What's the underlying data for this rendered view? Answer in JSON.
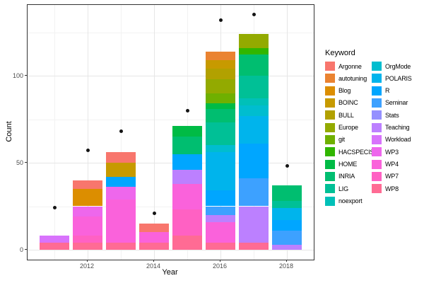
{
  "axes": {
    "x_title": "Year",
    "y_title": "Count"
  },
  "legend": {
    "title": "Keyword",
    "columns": [
      12,
      11
    ]
  },
  "chart_data": {
    "type": "bar",
    "subtype": "stacked_bars_with_point_overlay",
    "title": "",
    "xlabel": "Year",
    "ylabel": "Count",
    "grid": true,
    "legend_position": "right",
    "x": [
      2011,
      2012,
      2013,
      2014,
      2015,
      2016,
      2017,
      2018
    ],
    "ylim": [
      0,
      141
    ],
    "y_major": [
      0,
      50,
      100
    ],
    "y_minor": [
      25,
      75,
      125
    ],
    "y_tick_labels": [
      "0",
      "50",
      "100"
    ],
    "x_major": [
      2012,
      2014,
      2016,
      2018
    ],
    "x_minor": [
      2011,
      2013,
      2015,
      2017
    ],
    "x_tick_labels": [
      "2012",
      "2014",
      "2016",
      "2018"
    ],
    "keywords": [
      {
        "name": "Argonne",
        "color": "#F8766D"
      },
      {
        "name": "autotuning",
        "color": "#EA8331"
      },
      {
        "name": "Blog",
        "color": "#DC8E00"
      },
      {
        "name": "BOINC",
        "color": "#C79A00"
      },
      {
        "name": "BULL",
        "color": "#B2A100"
      },
      {
        "name": "Europe",
        "color": "#93AA00"
      },
      {
        "name": "git",
        "color": "#6FB000"
      },
      {
        "name": "HACSPECIS",
        "color": "#31B600"
      },
      {
        "name": "HOME",
        "color": "#00BB45"
      },
      {
        "name": "INRIA",
        "color": "#00BE70"
      },
      {
        "name": "LIG",
        "color": "#00C096"
      },
      {
        "name": "noexport",
        "color": "#00C0B8"
      },
      {
        "name": "OrgMode",
        "color": "#00BDCF"
      },
      {
        "name": "POLARIS",
        "color": "#00B4EC"
      },
      {
        "name": "R",
        "color": "#00A6FF"
      },
      {
        "name": "Seminar",
        "color": "#3DA1FF"
      },
      {
        "name": "Stats",
        "color": "#9590FF"
      },
      {
        "name": "Teaching",
        "color": "#BC80FF"
      },
      {
        "name": "Workload",
        "color": "#D873FC"
      },
      {
        "name": "WP3",
        "color": "#EE67EC"
      },
      {
        "name": "WP4",
        "color": "#FA62DB"
      },
      {
        "name": "WP7",
        "color": "#FF61C3"
      },
      {
        "name": "WP8",
        "color": "#FF6B94"
      }
    ],
    "series": [
      {
        "year": 2011,
        "total": 8,
        "segments": [
          [
            "WP8",
            4
          ],
          [
            "Workload",
            4
          ]
        ]
      },
      {
        "year": 2012,
        "total": 40,
        "segments": [
          [
            "WP8",
            4
          ],
          [
            "WP7",
            4
          ],
          [
            "WP4",
            11
          ],
          [
            "WP3",
            6
          ],
          [
            "Blog",
            10
          ],
          [
            "Argonne",
            5
          ]
        ]
      },
      {
        "year": 2013,
        "total": 56,
        "segments": [
          [
            "WP8",
            4
          ],
          [
            "WP4",
            25
          ],
          [
            "WP3",
            7
          ],
          [
            "R",
            6
          ],
          [
            "BOINC",
            8
          ],
          [
            "Argonne",
            6
          ]
        ]
      },
      {
        "year": 2014,
        "total": 15,
        "segments": [
          [
            "WP8",
            4
          ],
          [
            "WP4",
            6
          ],
          [
            "Argonne",
            5
          ]
        ]
      },
      {
        "year": 2015,
        "total": 71,
        "segments": [
          [
            "WP8",
            8
          ],
          [
            "WP7",
            15
          ],
          [
            "WP4",
            15
          ],
          [
            "Teaching",
            8
          ],
          [
            "R",
            9
          ],
          [
            "INRIA",
            10
          ],
          [
            "HOME",
            6
          ]
        ]
      },
      {
        "year": 2016,
        "total": 114,
        "segments": [
          [
            "WP8",
            4
          ],
          [
            "WP4",
            12
          ],
          [
            "Teaching",
            4
          ],
          [
            "Seminar",
            5
          ],
          [
            "R",
            9
          ],
          [
            "POLARIS",
            22
          ],
          [
            "OrgMode",
            4
          ],
          [
            "LIG",
            13
          ],
          [
            "INRIA",
            8
          ],
          [
            "HOME",
            3
          ],
          [
            "git",
            6
          ],
          [
            "Europe",
            8
          ],
          [
            "BULL",
            6
          ],
          [
            "BOINC",
            5
          ],
          [
            "autotuning",
            5
          ]
        ]
      },
      {
        "year": 2017,
        "total": 124,
        "segments": [
          [
            "WP8",
            4
          ],
          [
            "Teaching",
            21
          ],
          [
            "Seminar",
            16
          ],
          [
            "R",
            20
          ],
          [
            "POLARIS",
            16
          ],
          [
            "OrgMode",
            6
          ],
          [
            "noexport",
            4
          ],
          [
            "LIG",
            13
          ],
          [
            "INRIA",
            12
          ],
          [
            "HACSPECIS",
            4
          ],
          [
            "Europe",
            8
          ]
        ]
      },
      {
        "year": 2018,
        "total": 37,
        "segments": [
          [
            "Teaching",
            3
          ],
          [
            "Seminar",
            8
          ],
          [
            "R",
            6
          ],
          [
            "POLARIS",
            7
          ],
          [
            "LIG",
            4
          ],
          [
            "INRIA",
            9
          ]
        ]
      }
    ],
    "points": {
      "marker": "filled-circle",
      "color": "#141414",
      "values": [
        24,
        57,
        68,
        21,
        80,
        132,
        135,
        48
      ]
    }
  }
}
